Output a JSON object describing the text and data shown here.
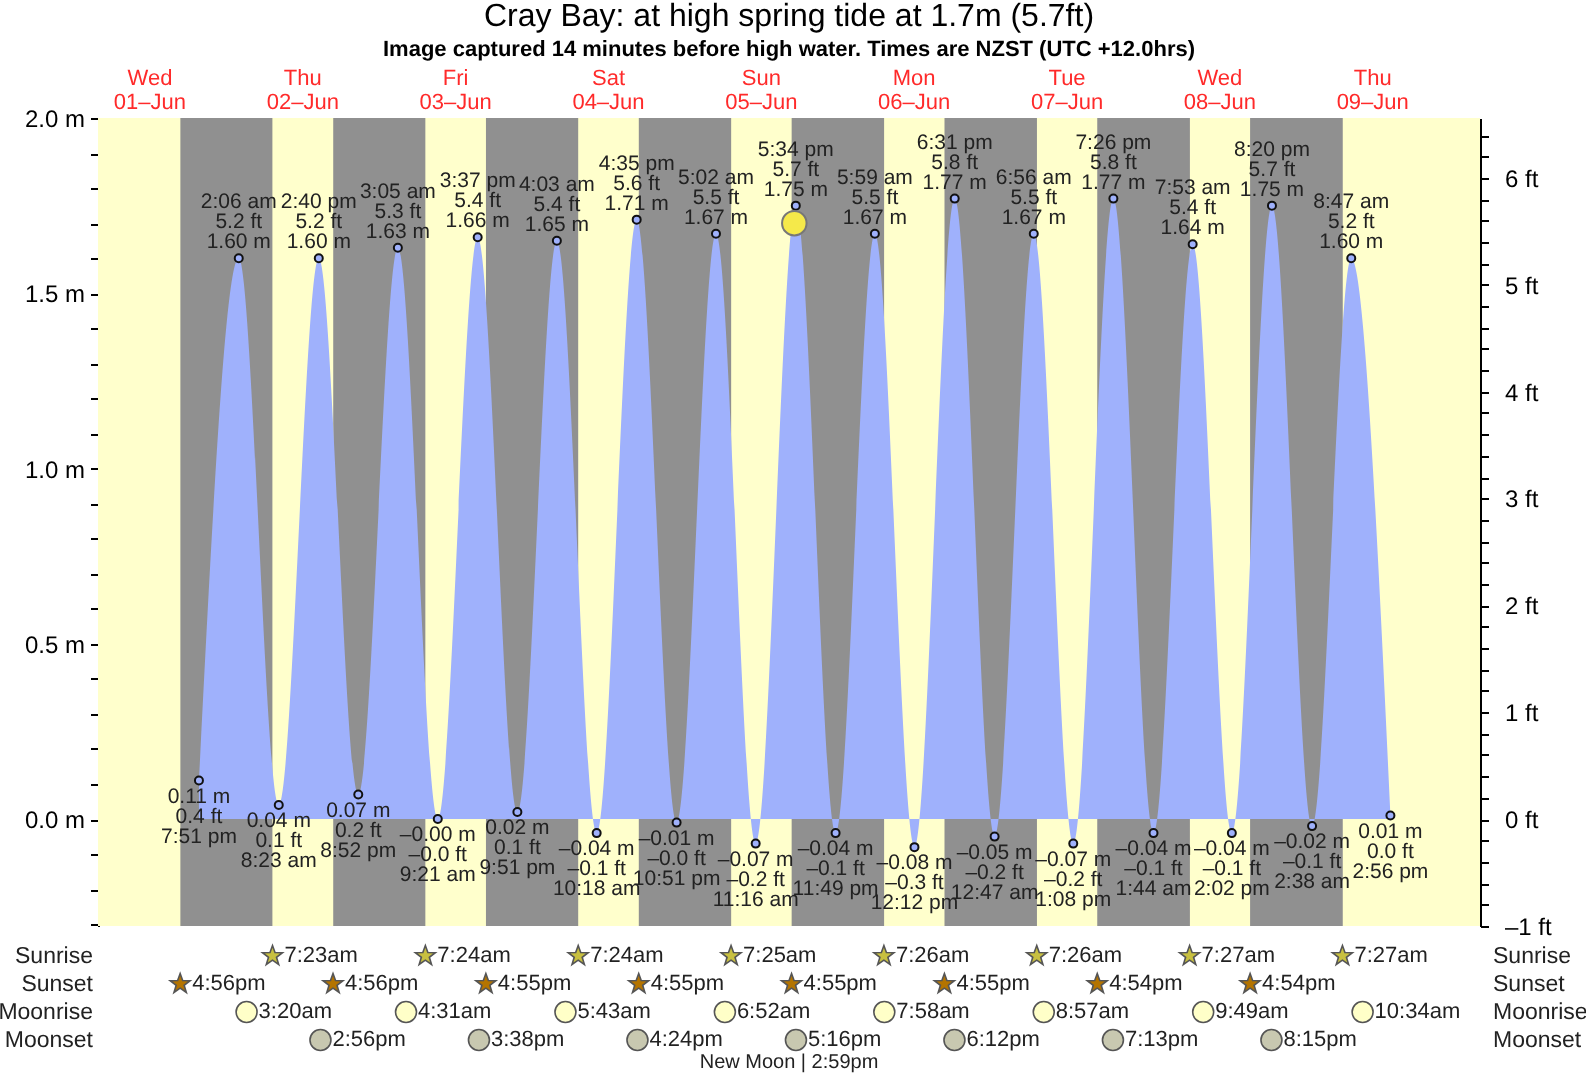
{
  "chart_data": [
    {
      "type": "area",
      "title": "Cray Bay: at high  spring tide at 1.7m (5.7ft)",
      "subtitle": "Image captured 14 minutes before high water. Times are NZST (UTC +12.0hrs)",
      "xlim": [
        "--06-01T04:00",
        "--06-10T05:00"
      ],
      "xticks": [
        {
          "value": "--06-01T12:00",
          "label": "Wed\n01–Jun"
        },
        {
          "value": "--06-02T12:00",
          "label": "Thu\n02–Jun"
        },
        {
          "value": "--06-03T12:00",
          "label": "Fri\n03–Jun"
        },
        {
          "value": "--06-04T12:00",
          "label": "Sat\n04–Jun"
        },
        {
          "value": "--06-05T12:00",
          "label": "Sun\n05–Jun"
        },
        {
          "value": "--06-06T12:00",
          "label": "Mon\n06–Jun"
        },
        {
          "value": "--06-07T12:00",
          "label": "Tue\n07–Jun"
        },
        {
          "value": "--06-08T12:00",
          "label": "Wed\n08–Jun"
        },
        {
          "value": "--06-09T12:00",
          "label": "Thu\n09–Jun"
        }
      ],
      "ylim": [
        -0.305,
        2.0
      ],
      "yticks": [
        {
          "value": -0.3,
          "label": null
        },
        {
          "value": -0.2,
          "label": null
        },
        {
          "value": -0.1,
          "label": null
        },
        {
          "value": 0,
          "label": "0.0 m"
        },
        {
          "value": 0.1,
          "label": null
        },
        {
          "value": 0.2,
          "label": null
        },
        {
          "value": 0.3,
          "label": null
        },
        {
          "value": 0.4,
          "label": null
        },
        {
          "value": 0.5,
          "label": "0.5 m"
        },
        {
          "value": 0.6,
          "label": null
        },
        {
          "value": 0.7,
          "label": null
        },
        {
          "value": 0.8,
          "label": null
        },
        {
          "value": 0.9,
          "label": null
        },
        {
          "value": 1.0,
          "label": "1.0 m"
        },
        {
          "value": 1.1,
          "label": null
        },
        {
          "value": 1.2,
          "label": null
        },
        {
          "value": 1.3,
          "label": null
        },
        {
          "value": 1.4,
          "label": null
        },
        {
          "value": 1.5,
          "label": "1.5 m"
        },
        {
          "value": 1.6,
          "label": null
        },
        {
          "value": 1.7,
          "label": null
        },
        {
          "value": 1.8,
          "label": null
        },
        {
          "value": 1.9,
          "label": null
        },
        {
          "value": 2.0,
          "label": "2.0 m"
        }
      ],
      "y2lim": [
        -1.0,
        6.56
      ],
      "y2ticks": [
        {
          "value": -1,
          "label": "–1 ft"
        },
        {
          "value": -0.8,
          "label": null
        },
        {
          "value": -0.6,
          "label": null
        },
        {
          "value": -0.4,
          "label": null
        },
        {
          "value": -0.2,
          "label": null
        },
        {
          "value": 0,
          "label": "0 ft"
        },
        {
          "value": 0.2,
          "label": null
        },
        {
          "value": 0.4,
          "label": null
        },
        {
          "value": 0.6,
          "label": null
        },
        {
          "value": 0.8,
          "label": null
        },
        {
          "value": 1,
          "label": "1 ft"
        },
        {
          "value": 1.2,
          "label": null
        },
        {
          "value": 1.4,
          "label": null
        },
        {
          "value": 1.6,
          "label": null
        },
        {
          "value": 1.8,
          "label": null
        },
        {
          "value": 2,
          "label": "2 ft"
        },
        {
          "value": 2.2,
          "label": null
        },
        {
          "value": 2.4,
          "label": null
        },
        {
          "value": 2.6,
          "label": null
        },
        {
          "value": 2.8,
          "label": null
        },
        {
          "value": 3,
          "label": "3 ft"
        },
        {
          "value": 3.2,
          "label": null
        },
        {
          "value": 3.4,
          "label": null
        },
        {
          "value": 3.6,
          "label": null
        },
        {
          "value": 3.8,
          "label": null
        },
        {
          "value": 4,
          "label": "4 ft"
        },
        {
          "value": 4.2,
          "label": null
        },
        {
          "value": 4.4,
          "label": null
        },
        {
          "value": 4.6,
          "label": null
        },
        {
          "value": 4.8,
          "label": null
        },
        {
          "value": 5,
          "label": "5 ft"
        },
        {
          "value": 5.2,
          "label": null
        },
        {
          "value": 5.4,
          "label": null
        },
        {
          "value": 5.6,
          "label": null
        },
        {
          "value": 5.8,
          "label": null
        },
        {
          "value": 6,
          "label": "6 ft"
        },
        {
          "value": 6.2,
          "label": null
        },
        {
          "value": 6.4,
          "label": null
        }
      ],
      "bands": [
        {
          "axis": "x",
          "from": "--06-01T04:00",
          "to": "--06-10T05:00",
          "color": "#ffffcc"
        },
        {
          "axis": "x",
          "from": "--06-01T16:56",
          "to": "--06-02T07:23",
          "color": "#909090"
        },
        {
          "axis": "x",
          "from": "--06-02T16:56",
          "to": "--06-03T07:24",
          "color": "#909090"
        },
        {
          "axis": "x",
          "from": "--06-03T16:55",
          "to": "--06-04T07:24",
          "color": "#909090"
        },
        {
          "axis": "x",
          "from": "--06-04T16:55",
          "to": "--06-05T07:25",
          "color": "#909090"
        },
        {
          "axis": "x",
          "from": "--06-05T16:55",
          "to": "--06-06T07:26",
          "color": "#909090"
        },
        {
          "axis": "x",
          "from": "--06-06T16:55",
          "to": "--06-07T07:26",
          "color": "#909090"
        },
        {
          "axis": "x",
          "from": "--06-07T16:54",
          "to": "--06-08T07:27",
          "color": "#909090"
        },
        {
          "axis": "x",
          "from": "--06-08T16:54",
          "to": "--06-09T07:27",
          "color": "#909090"
        }
      ],
      "series": [
        {
          "type": "area",
          "color": "#9fb1fc",
          "marker": "circle",
          "x": [
            "--06-01T19:51",
            "--06-02T02:06",
            "--06-02T08:23",
            "--06-02T14:40",
            "--06-02T20:52",
            "--06-03T03:05",
            "--06-03T09:21",
            "--06-03T15:37",
            "--06-03T21:51",
            "--06-04T04:03",
            "--06-04T10:18",
            "--06-04T16:35",
            "--06-04T22:51",
            "--06-05T05:02",
            "--06-05T11:16",
            "--06-05T17:34",
            "--06-05T23:49",
            "--06-06T05:59",
            "--06-06T12:12",
            "--06-06T18:31",
            "--06-07T00:47",
            "--06-07T06:56",
            "--06-07T13:08",
            "--06-07T19:26",
            "--06-08T01:44",
            "--06-08T07:53",
            "--06-08T14:02",
            "--06-08T20:20",
            "--06-09T02:38",
            "--06-09T08:47",
            "--06-09T14:56"
          ],
          "values": [
            0.11,
            1.6,
            0.04,
            1.6,
            0.07,
            1.63,
            0,
            1.66,
            0.02,
            1.65,
            -0.04,
            1.71,
            -0.01,
            1.67,
            -0.07,
            1.75,
            -0.04,
            1.67,
            -0.08,
            1.77,
            -0.05,
            1.67,
            -0.07,
            1.77,
            -0.04,
            1.64,
            -0.04,
            1.75,
            -0.02,
            1.6,
            0.01
          ],
          "value_labels": [
            "0.11 m\n0.4 ft\n7:51 pm",
            "2:06 am\n5.2 ft\n1.60 m",
            "0.04 m\n0.1 ft\n8:23 am",
            "2:40 pm\n5.2 ft\n1.60 m",
            "0.07 m\n0.2 ft\n8:52 pm",
            "3:05 am\n5.3 ft\n1.63 m",
            "–0.00 m\n–0.0 ft\n9:21 am",
            "3:37 pm\n5.4 ft\n1.66 m",
            "0.02 m\n0.1 ft\n9:51 pm",
            "4:03 am\n5.4 ft\n1.65 m",
            "–0.04 m\n–0.1 ft\n10:18 am",
            "4:35 pm\n5.6 ft\n1.71 m",
            "–0.01 m\n–0.0 ft\n10:51 pm",
            "5:02 am\n5.5 ft\n1.67 m",
            "–0.07 m\n–0.2 ft\n11:16 am",
            "5:34 pm\n5.7 ft\n1.75 m",
            "–0.04 m\n–0.1 ft\n11:49 pm",
            "5:59 am\n5.5 ft\n1.67 m",
            "–0.08 m\n–0.3 ft\n12:12 pm",
            "6:31 pm\n5.8 ft\n1.77 m",
            "–0.05 m\n–0.2 ft\n12:47 am",
            "6:56 am\n5.5 ft\n1.67 m",
            "–0.07 m\n–0.2 ft\n1:08 pm",
            "7:26 pm\n5.8 ft\n1.77 m",
            "–0.04 m\n–0.1 ft\n1:44 am",
            "7:53 am\n5.4 ft\n1.64 m",
            "–0.04 m\n–0.1 ft\n2:02 pm",
            "8:20 pm\n5.7 ft\n1.75 m",
            "–0.02 m\n–0.1 ft\n2:38 am",
            "8:47 am\n5.2 ft\n1.60 m",
            "0.01 m\n0.0 ft\n2:56 pm"
          ]
        },
        {
          "type": "scatter",
          "color": "#f5e94a",
          "marker": "circle",
          "x": [
            "--06-05T17:20"
          ],
          "values": [
            1.7
          ]
        }
      ]
    },
    {
      "type": "other",
      "categories": [
        null,
        null,
        null,
        null,
        null,
        null,
        null,
        null,
        null
      ],
      "y_categories": [
        "Sunrise",
        "Sunset",
        "Moonrise",
        "Moonset"
      ],
      "y2_categories": [
        "Sunrise",
        "Sunset",
        "Moonrise",
        "Moonset"
      ],
      "cell_labels": [
        [
          null,
          "7:23am",
          "7:24am",
          "7:24am",
          "7:25am",
          "7:26am",
          "7:26am",
          "7:27am",
          "7:27am"
        ],
        [
          "4:56pm",
          "4:56pm",
          "4:55pm",
          "4:55pm",
          "4:55pm",
          "4:55pm",
          "4:54pm",
          "4:54pm",
          null
        ],
        [
          null,
          "3:20am",
          "4:31am",
          "5:43am",
          "6:52am",
          "7:58am",
          "8:57am",
          "9:49am",
          "10:34am"
        ],
        [
          null,
          "2:56pm",
          "3:38pm",
          "4:24pm",
          "5:16pm",
          "6:12pm",
          "7:13pm",
          "8:15pm",
          null
        ]
      ],
      "annotations": [
        "New Moon | 2:59pm"
      ]
    }
  ]
}
